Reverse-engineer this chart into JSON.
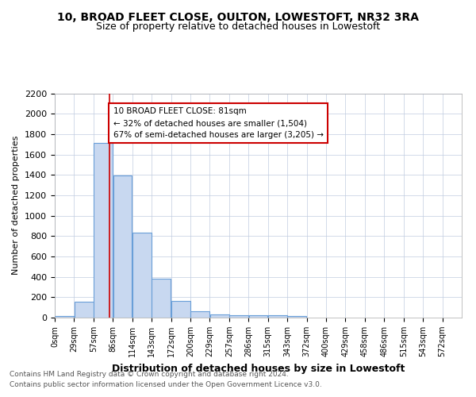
{
  "title1": "10, BROAD FLEET CLOSE, OULTON, LOWESTOFT, NR32 3RA",
  "title2": "Size of property relative to detached houses in Lowestoft",
  "xlabel": "Distribution of detached houses by size in Lowestoft",
  "ylabel": "Number of detached properties",
  "bin_labels": [
    "0sqm",
    "29sqm",
    "57sqm",
    "86sqm",
    "114sqm",
    "143sqm",
    "172sqm",
    "200sqm",
    "229sqm",
    "257sqm",
    "286sqm",
    "315sqm",
    "343sqm",
    "372sqm",
    "400sqm",
    "429sqm",
    "458sqm",
    "486sqm",
    "515sqm",
    "543sqm",
    "572sqm"
  ],
  "bar_values": [
    15,
    155,
    1710,
    1395,
    835,
    385,
    160,
    65,
    35,
    25,
    25,
    20,
    12,
    0,
    0,
    0,
    0,
    0,
    0,
    0,
    0
  ],
  "bar_color": "#c8d8f0",
  "bar_edge_color": "#6a9fd8",
  "ylim": [
    0,
    2200
  ],
  "yticks": [
    0,
    200,
    400,
    600,
    800,
    1000,
    1200,
    1400,
    1600,
    1800,
    2000,
    2200
  ],
  "property_line_x": 81,
  "bin_width": 28.57,
  "annotation_text": "10 BROAD FLEET CLOSE: 81sqm\n← 32% of detached houses are smaller (1,504)\n67% of semi-detached houses are larger (3,205) →",
  "annotation_box_color": "#ffffff",
  "annotation_box_edge": "#cc0000",
  "red_line_color": "#cc0000",
  "footer1": "Contains HM Land Registry data © Crown copyright and database right 2024.",
  "footer2": "Contains public sector information licensed under the Open Government Licence v3.0.",
  "background_color": "#ffffff",
  "grid_color": "#c0cce0"
}
